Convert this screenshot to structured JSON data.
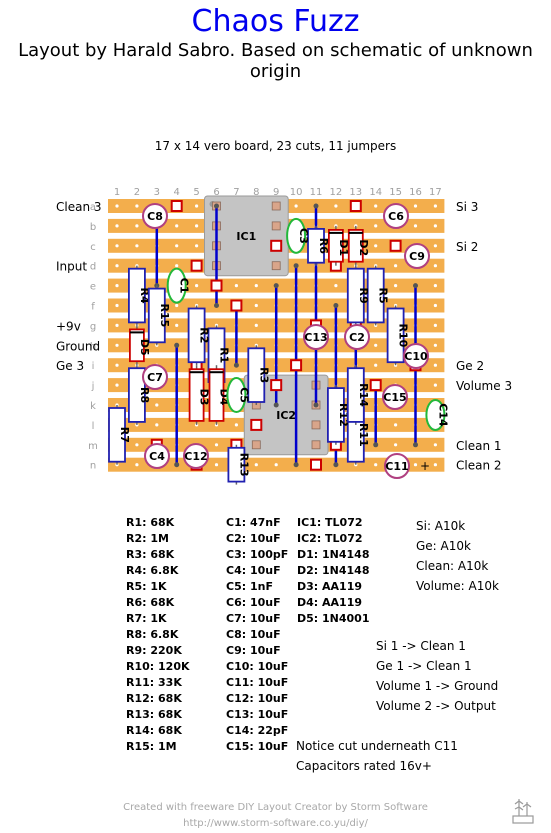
{
  "title": "Chaos Fuzz",
  "subtitle": "Layout by Harald Sabro. Based on schematic of unknown origin",
  "board_info": "17 x 14 vero board, 23 cuts, 11 jumpers",
  "columns": [
    "1",
    "2",
    "3",
    "4",
    "5",
    "6",
    "7",
    "8",
    "9",
    "10",
    "11",
    "12",
    "13",
    "14",
    "15",
    "16",
    "17"
  ],
  "rows": [
    "a",
    "b",
    "c",
    "d",
    "e",
    "f",
    "g",
    "h",
    "i",
    "j",
    "k",
    "l",
    "m",
    "n"
  ],
  "left_labels": [
    {
      "row": 0,
      "text": "Clean 3"
    },
    {
      "row": 3,
      "text": "Input"
    },
    {
      "row": 6,
      "text": "+9v"
    },
    {
      "row": 7,
      "text": "Ground"
    },
    {
      "row": 8,
      "text": "Ge 3"
    }
  ],
  "right_labels": [
    {
      "row": 0,
      "text": "Si 3"
    },
    {
      "row": 2,
      "text": "Si 2"
    },
    {
      "row": 8,
      "text": "Ge 2"
    },
    {
      "row": 9,
      "text": "Volume 3"
    },
    {
      "row": 12,
      "text": "Clean 1"
    },
    {
      "row": 13,
      "text": "Clean 2"
    }
  ],
  "components": {
    "ic": [
      "IC1",
      "IC2"
    ],
    "resistors": [
      "R1",
      "R2",
      "R3",
      "R4",
      "R5",
      "R6",
      "R7",
      "R8",
      "R9",
      "R10",
      "R11",
      "R12",
      "R13",
      "R14",
      "R15"
    ],
    "diodes": [
      "D1",
      "D2",
      "D3",
      "D4",
      "D5"
    ],
    "film_caps": [
      "C1",
      "C3",
      "C5",
      "C14"
    ],
    "electrolytic_caps": [
      "C2",
      "C4",
      "C6",
      "C7",
      "C8",
      "C9",
      "C10",
      "C11",
      "C12",
      "C13",
      "C15"
    ]
  },
  "parts_list": {
    "resistors": [
      "R1: 68K",
      "R2: 1M",
      "R3: 68K",
      "R4: 6.8K",
      "R5: 1K",
      "R6: 68K",
      "R7: 1K",
      "R8: 6.8K",
      "R9: 220K",
      "R10: 120K",
      "R11: 33K",
      "R12: 68K",
      "R13: 68K",
      "R14: 68K",
      "R15: 1M"
    ],
    "capacitors": [
      "C1: 47nF",
      "C2: 10uF",
      "C3: 100pF",
      "C4: 10uF",
      "C5: 1nF",
      "C6: 10uF",
      "C7: 10uF",
      "C8: 10uF",
      "C9: 10uF",
      "C10: 10uF",
      "C11: 10uF",
      "C12: 10uF",
      "C13: 10uF",
      "C14: 22pF",
      "C15: 10uF"
    ],
    "semis": [
      "IC1: TL072",
      "IC2: TL072",
      "D1: 1N4148",
      "D2: 1N4148",
      "D3: AA119",
      "D4: AA119",
      "D5: 1N4001"
    ],
    "pots": [
      "Si: A10k",
      "Ge: A10k",
      "Clean: A10k",
      "Volume: A10k"
    ],
    "wiring": [
      "Si 1 -> Clean 1",
      "Ge 1 -> Clean 1",
      "Volume 1 -> Ground",
      "Volume 2 -> Output"
    ],
    "notes": [
      "Notice cut underneath C11",
      "Capacitors rated 16v+"
    ]
  },
  "footer": {
    "line1": "Created with freeware DIY Layout Creator by Storm Software",
    "line2": "http://www.storm-software.co.yu/diy/"
  },
  "colors": {
    "title": "#0000ee",
    "strip": "#f3ae4c",
    "cut": "#cc0000",
    "jumper": "#0000cc",
    "resistor": "#2020b0",
    "film_cap": "#22b83a",
    "electro_cap": "#b04080",
    "ic_body": "#c4c4c4"
  }
}
